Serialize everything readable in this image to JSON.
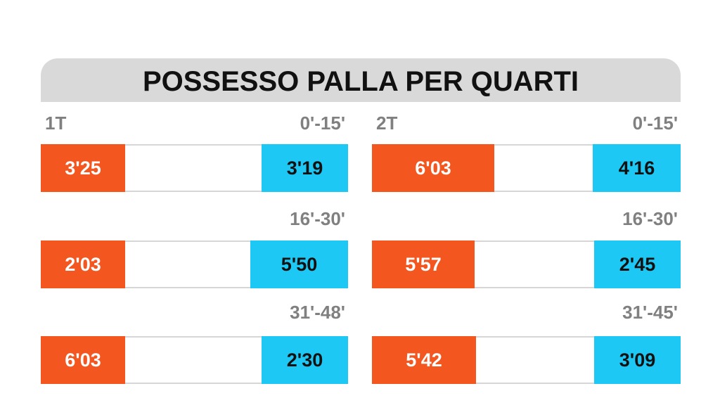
{
  "title": "POSSESSO PALLA PER QUARTI",
  "halves": [
    {
      "label": "1T",
      "periods": [
        {
          "range": "0'-15'",
          "home": "3'25",
          "away": "3'19"
        },
        {
          "range": "16'-30'",
          "home": "2'03",
          "away": "5'50"
        },
        {
          "range": "31'-48'",
          "home": "6'03",
          "away": "2'30"
        }
      ]
    },
    {
      "label": "2T",
      "periods": [
        {
          "range": "0'-15'",
          "home": "6'03",
          "away": "4'16"
        },
        {
          "range": "16'-30'",
          "home": "5'57",
          "away": "2'45"
        },
        {
          "range": "31'-45'",
          "home": "5'42",
          "away": "3'09"
        }
      ]
    }
  ]
}
